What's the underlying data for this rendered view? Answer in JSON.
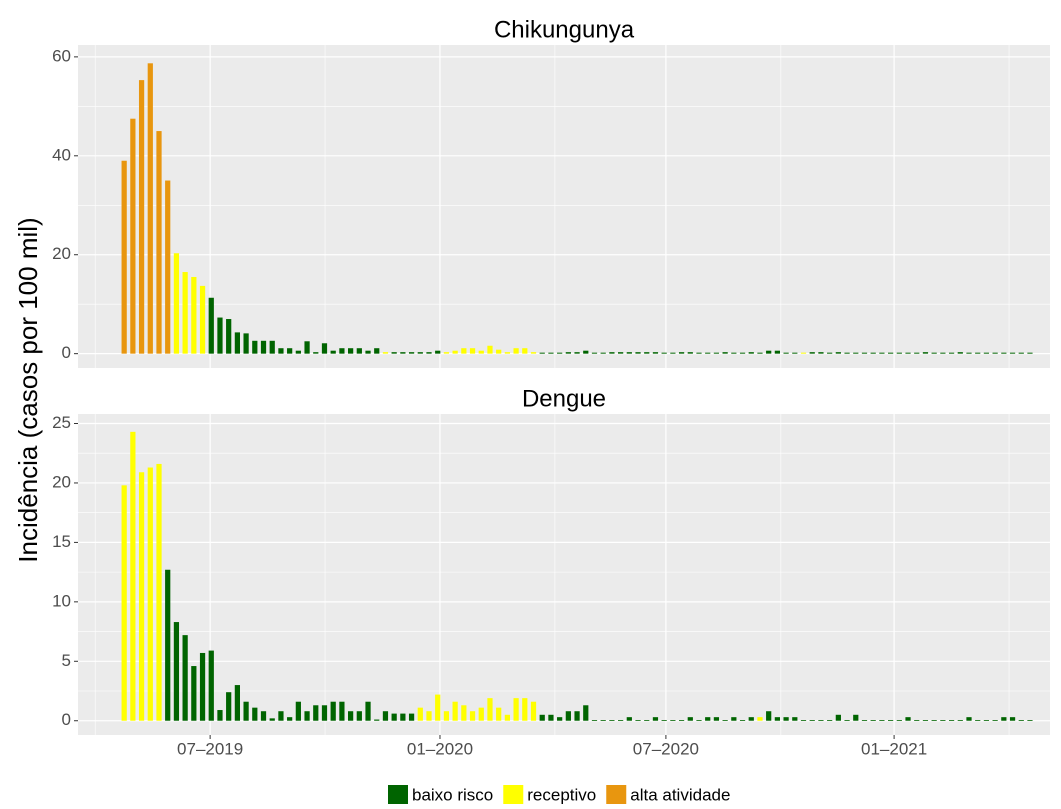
{
  "y_label": "Incidência (casos por 100 mil)",
  "legend": [
    {
      "name": "baixo risco",
      "color": "#006400"
    },
    {
      "name": "receptivo",
      "color": "#FFFF00"
    },
    {
      "name": "alta atividade",
      "color": "#E8960F"
    }
  ],
  "chart_data": [
    {
      "type": "bar",
      "title": "Chikungunya",
      "x": [
        0,
        1,
        2,
        3,
        4,
        5,
        6,
        7,
        8,
        9,
        10,
        11,
        12,
        13,
        14,
        15,
        16,
        17,
        18,
        19,
        20,
        21,
        22,
        23,
        24,
        25,
        26,
        27,
        28,
        29,
        30,
        31,
        32,
        33,
        34,
        35,
        36,
        37,
        38,
        39,
        40,
        41,
        42,
        43,
        44,
        45,
        46,
        47,
        48,
        49,
        50,
        51,
        52,
        53,
        54,
        55,
        56,
        57,
        58,
        59,
        60,
        61,
        62,
        63,
        64,
        65,
        66,
        67,
        68,
        69,
        70,
        71,
        72,
        73,
        74,
        75,
        76,
        77,
        78,
        79,
        80,
        81,
        82,
        83,
        84,
        85,
        86,
        87,
        88,
        89,
        90,
        91,
        92,
        93,
        94,
        95,
        96,
        97,
        98,
        99,
        100,
        101,
        102,
        103,
        104
      ],
      "values": [
        39,
        47.5,
        55.3,
        58.7,
        45,
        35,
        20.3,
        16.5,
        15.5,
        13.7,
        11.3,
        7.3,
        7,
        4.3,
        4.1,
        2.6,
        2.6,
        2.6,
        1.1,
        1.1,
        0.6,
        2.5,
        0.3,
        2.1,
        0.6,
        1.1,
        1.1,
        1.1,
        0.6,
        1.1,
        0.3,
        0.3,
        0.3,
        0.3,
        0.3,
        0.3,
        0.6,
        0.3,
        0.6,
        1.1,
        1.1,
        0.6,
        1.6,
        0.8,
        0.3,
        1.1,
        1.1,
        0.3,
        0.2,
        0.2,
        0.2,
        0.3,
        0.3,
        0.6,
        0.2,
        0.2,
        0.3,
        0.3,
        0.3,
        0.3,
        0.3,
        0.3,
        0.2,
        0.2,
        0.3,
        0.3,
        0.2,
        0.2,
        0.2,
        0.3,
        0.2,
        0.2,
        0.3,
        0.2,
        0.6,
        0.6,
        0.2,
        0.2,
        0.2,
        0.3,
        0.3,
        0.2,
        0.3,
        0.2,
        0.2,
        0.2,
        0.2,
        0.2,
        0.2,
        0.2,
        0.2,
        0.2,
        0.3,
        0.2,
        0.2,
        0.2,
        0.3,
        0.2,
        0.2,
        0.2,
        0.2,
        0.2,
        0.2,
        0.2,
        0.2
      ],
      "levels": [
        2,
        2,
        2,
        2,
        2,
        2,
        1,
        1,
        1,
        1,
        0,
        0,
        0,
        0,
        0,
        0,
        0,
        0,
        0,
        0,
        0,
        0,
        0,
        0,
        0,
        0,
        0,
        0,
        0,
        0,
        1,
        0,
        0,
        0,
        0,
        0,
        0,
        1,
        1,
        1,
        1,
        1,
        1,
        1,
        1,
        1,
        1,
        1,
        0,
        0,
        0,
        0,
        0,
        0,
        0,
        0,
        0,
        0,
        0,
        0,
        0,
        0,
        0,
        0,
        0,
        0,
        0,
        0,
        0,
        0,
        0,
        0,
        0,
        0,
        0,
        0,
        0,
        0,
        1,
        0,
        0,
        0,
        0,
        0,
        0,
        0,
        0,
        0,
        0,
        0,
        0,
        0,
        0,
        0,
        0,
        0,
        0,
        0,
        0,
        0,
        0,
        0,
        0,
        0,
        0
      ],
      "xlim": [
        -5.3,
        106.3
      ],
      "ylim": [
        -2.9,
        62.4
      ],
      "yticks": [
        0,
        20,
        40,
        60
      ]
    },
    {
      "type": "bar",
      "title": "Dengue",
      "x": [
        0,
        1,
        2,
        3,
        4,
        5,
        6,
        7,
        8,
        9,
        10,
        11,
        12,
        13,
        14,
        15,
        16,
        17,
        18,
        19,
        20,
        21,
        22,
        23,
        24,
        25,
        26,
        27,
        28,
        29,
        30,
        31,
        32,
        33,
        34,
        35,
        36,
        37,
        38,
        39,
        40,
        41,
        42,
        43,
        44,
        45,
        46,
        47,
        48,
        49,
        50,
        51,
        52,
        53,
        54,
        55,
        56,
        57,
        58,
        59,
        60,
        61,
        62,
        63,
        64,
        65,
        66,
        67,
        68,
        69,
        70,
        71,
        72,
        73,
        74,
        75,
        76,
        77,
        78,
        79,
        80,
        81,
        82,
        83,
        84,
        85,
        86,
        87,
        88,
        89,
        90,
        91,
        92,
        93,
        94,
        95,
        96,
        97,
        98,
        99,
        100,
        101,
        102,
        103,
        104
      ],
      "values": [
        19.8,
        24.3,
        20.9,
        21.3,
        21.6,
        12.7,
        8.3,
        7.2,
        4.6,
        5.7,
        5.9,
        0.9,
        2.4,
        3.0,
        1.6,
        1.1,
        0.8,
        0.2,
        0.8,
        0.3,
        1.6,
        0.8,
        1.3,
        1.3,
        1.6,
        1.6,
        0.8,
        0.8,
        1.6,
        0.1,
        0.8,
        0.6,
        0.6,
        0.6,
        1.1,
        0.8,
        2.2,
        0.8,
        1.6,
        1.3,
        0.8,
        1.1,
        1.9,
        1.1,
        0.5,
        1.9,
        1.9,
        1.6,
        0.5,
        0.5,
        0.3,
        0.8,
        0.8,
        1.3,
        0.05,
        0.05,
        0.05,
        0.05,
        0.3,
        0.05,
        0.05,
        0.3,
        0.05,
        0.05,
        0.05,
        0.3,
        0.05,
        0.3,
        0.3,
        0.05,
        0.3,
        0.05,
        0.3,
        0.3,
        0.8,
        0.3,
        0.3,
        0.3,
        0.05,
        0.05,
        0.05,
        0.05,
        0.5,
        0.05,
        0.5,
        0.05,
        0.05,
        0.05,
        0.05,
        0.05,
        0.3,
        0.05,
        0.05,
        0.05,
        0.05,
        0.05,
        0.05,
        0.3,
        0.05,
        0.05,
        0.05,
        0.3,
        0.3,
        0.05,
        0.05
      ],
      "levels": [
        1,
        1,
        1,
        1,
        1,
        0,
        0,
        0,
        0,
        0,
        0,
        0,
        0,
        0,
        0,
        0,
        0,
        0,
        0,
        0,
        0,
        0,
        0,
        0,
        0,
        0,
        0,
        0,
        0,
        0,
        0,
        0,
        0,
        0,
        1,
        1,
        1,
        1,
        1,
        1,
        1,
        1,
        1,
        1,
        1,
        1,
        1,
        1,
        0,
        0,
        0,
        0,
        0,
        0,
        0,
        0,
        0,
        0,
        0,
        0,
        0,
        0,
        0,
        0,
        0,
        0,
        0,
        0,
        0,
        0,
        0,
        0,
        0,
        1,
        0,
        0,
        0,
        0,
        0,
        0,
        0,
        0,
        0,
        0,
        0,
        0,
        0,
        0,
        0,
        0,
        0,
        0,
        0,
        0,
        0,
        0,
        0,
        0,
        0,
        0,
        0,
        0,
        0,
        0,
        0
      ],
      "xlim": [
        -5.3,
        106.3
      ],
      "ylim": [
        -1.2,
        25.8
      ],
      "yticks": [
        0,
        5,
        10,
        15,
        20,
        25
      ],
      "xticks": [
        {
          "value": 9.87,
          "label": "07–2019"
        },
        {
          "value": 36.26,
          "label": "01–2020"
        },
        {
          "value": 62.2,
          "label": "07–2020"
        },
        {
          "value": 88.4,
          "label": "01–2021"
        }
      ]
    }
  ]
}
